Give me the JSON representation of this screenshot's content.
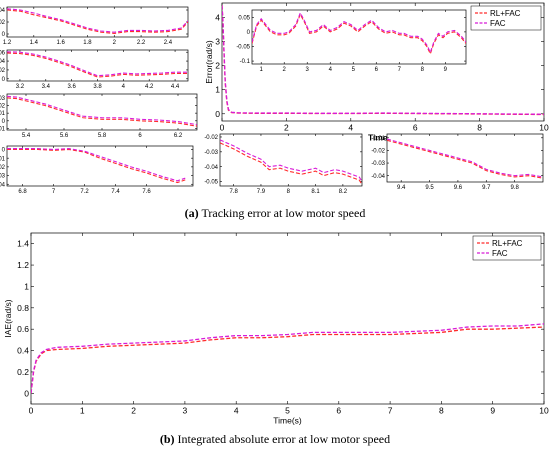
{
  "captions": {
    "a_label": "(a)",
    "a_text": "Tracking error at low motor speed",
    "b_label": "(b)",
    "b_text": "Integrated absolute error at low motor speed"
  },
  "colors": {
    "rl_fac": "#ff2b2b",
    "fac": "#d81bd8"
  },
  "chart_data": [
    {
      "id": "main_a",
      "type": "line",
      "xlabel": "Time(s)",
      "ylabel": "Error(rad/s)",
      "xlim": [
        0,
        10
      ],
      "ylim": [
        -0.3,
        4.6
      ],
      "xticks": [
        0,
        2,
        4,
        6,
        8,
        10
      ],
      "yticks": [
        0,
        1,
        2,
        3,
        4
      ],
      "legend": {
        "placement": "top-right",
        "entries": [
          "RL+FAC",
          "FAC"
        ]
      },
      "series": [
        {
          "name": "RL+FAC",
          "x": [
            0,
            0.03,
            0.06,
            0.1,
            0.15,
            0.2,
            0.3,
            0.5,
            1,
            2,
            3,
            4,
            5,
            6,
            7,
            8,
            9,
            10
          ],
          "y": [
            4.5,
            3.8,
            2.6,
            1.3,
            0.5,
            0.15,
            0.05,
            0.03,
            0.02,
            0.02,
            0.01,
            0.01,
            0.02,
            0.01,
            0.0,
            -0.01,
            -0.02,
            -0.03
          ]
        },
        {
          "name": "FAC",
          "x": [
            0,
            0.03,
            0.06,
            0.1,
            0.15,
            0.2,
            0.3,
            0.5,
            1,
            2,
            3,
            4,
            5,
            6,
            7,
            8,
            9,
            10
          ],
          "y": [
            4.5,
            3.85,
            2.7,
            1.35,
            0.55,
            0.18,
            0.06,
            0.04,
            0.03,
            0.03,
            0.02,
            0.02,
            0.03,
            0.02,
            0.01,
            0.0,
            -0.01,
            -0.02
          ]
        }
      ]
    },
    {
      "id": "inset_main",
      "type": "line",
      "xlim": [
        0.6,
        9.9
      ],
      "ylim": [
        -0.11,
        0.075
      ],
      "xticks": [
        1,
        2,
        3,
        4,
        5,
        6,
        7,
        8,
        9
      ],
      "yticks": [
        0.05,
        0,
        -0.05,
        -0.1
      ],
      "series": [
        {
          "name": "RL+FAC",
          "x": [
            0.6,
            0.8,
            1.0,
            1.2,
            1.4,
            1.7,
            2.0,
            2.2,
            2.5,
            2.7,
            2.9,
            3.1,
            3.4,
            3.7,
            4.0,
            4.3,
            4.6,
            4.9,
            5.2,
            5.5,
            5.8,
            6.1,
            6.4,
            6.7,
            7.0,
            7.2,
            7.5,
            7.8,
            8.0,
            8.2,
            8.35,
            8.5,
            8.7,
            8.9,
            9.1,
            9.4,
            9.7,
            9.9
          ],
          "y": [
            -0.04,
            0.02,
            0.04,
            0.02,
            0.0,
            -0.01,
            -0.01,
            -0.005,
            0.02,
            0.06,
            0.03,
            -0.005,
            0.0,
            0.02,
            0.0,
            0.01,
            0.03,
            0.02,
            0.0,
            0.02,
            0.035,
            0.01,
            -0.005,
            0.0,
            -0.01,
            -0.01,
            -0.02,
            -0.02,
            -0.03,
            -0.05,
            -0.075,
            -0.04,
            -0.01,
            -0.02,
            -0.005,
            0.0,
            -0.02,
            -0.04
          ]
        },
        {
          "name": "FAC",
          "x": [
            0.6,
            0.8,
            1.0,
            1.2,
            1.4,
            1.7,
            2.0,
            2.2,
            2.5,
            2.7,
            2.9,
            3.1,
            3.4,
            3.7,
            4.0,
            4.3,
            4.6,
            4.9,
            5.2,
            5.5,
            5.8,
            6.1,
            6.4,
            6.7,
            7.0,
            7.2,
            7.5,
            7.8,
            8.0,
            8.2,
            8.35,
            8.5,
            8.7,
            8.9,
            9.1,
            9.4,
            9.7,
            9.9
          ],
          "y": [
            -0.035,
            0.025,
            0.045,
            0.025,
            0.005,
            -0.005,
            -0.005,
            0.0,
            0.025,
            0.065,
            0.035,
            0.0,
            0.005,
            0.025,
            0.005,
            0.015,
            0.035,
            0.025,
            0.005,
            0.025,
            0.04,
            0.015,
            0.0,
            0.005,
            -0.005,
            -0.005,
            -0.015,
            -0.015,
            -0.025,
            -0.045,
            -0.07,
            -0.035,
            -0.005,
            -0.015,
            0.0,
            0.005,
            -0.015,
            -0.035
          ]
        }
      ]
    },
    {
      "id": "left_1",
      "type": "line",
      "xlim": [
        1.2,
        2.55
      ],
      "ylim": [
        -0.005,
        0.045
      ],
      "xticks": [
        1.2,
        1.4,
        1.6,
        1.8,
        2,
        2.2,
        2.4
      ],
      "yticks": [
        0.04,
        0.02,
        0
      ],
      "series": [
        {
          "name": "RL+FAC",
          "x": [
            1.2,
            1.3,
            1.4,
            1.5,
            1.6,
            1.7,
            1.8,
            1.9,
            2.0,
            2.1,
            2.2,
            2.3,
            2.4,
            2.5,
            2.55
          ],
          "y": [
            0.04,
            0.038,
            0.032,
            0.027,
            0.022,
            0.015,
            0.008,
            0.003,
            0.001,
            0.004,
            0.004,
            0.003,
            0.004,
            0.008,
            0.02
          ]
        },
        {
          "name": "FAC",
          "x": [
            1.2,
            1.3,
            1.4,
            1.5,
            1.6,
            1.7,
            1.8,
            1.9,
            2.0,
            2.1,
            2.2,
            2.3,
            2.4,
            2.5,
            2.55
          ],
          "y": [
            0.042,
            0.04,
            0.035,
            0.029,
            0.024,
            0.017,
            0.01,
            0.005,
            0.003,
            0.006,
            0.006,
            0.005,
            0.006,
            0.01,
            0.022
          ]
        }
      ]
    },
    {
      "id": "left_2",
      "type": "line",
      "xlim": [
        3.1,
        4.5
      ],
      "ylim": [
        -0.005,
        0.065
      ],
      "xticks": [
        3.2,
        3.4,
        3.6,
        3.8,
        4,
        4.2,
        4.4
      ],
      "yticks": [
        0.06,
        0.04,
        0.02,
        0
      ],
      "series": [
        {
          "name": "RL+FAC",
          "x": [
            3.1,
            3.2,
            3.3,
            3.4,
            3.5,
            3.6,
            3.7,
            3.8,
            3.9,
            4.0,
            4.1,
            4.2,
            4.3,
            4.4,
            4.5
          ],
          "y": [
            0.058,
            0.057,
            0.053,
            0.046,
            0.037,
            0.027,
            0.015,
            0.004,
            0.006,
            0.01,
            0.008,
            0.009,
            0.01,
            0.012,
            0.012
          ]
        },
        {
          "name": "FAC",
          "x": [
            3.1,
            3.2,
            3.3,
            3.4,
            3.5,
            3.6,
            3.7,
            3.8,
            3.9,
            4.0,
            4.1,
            4.2,
            4.3,
            4.4,
            4.5
          ],
          "y": [
            0.061,
            0.06,
            0.056,
            0.049,
            0.04,
            0.03,
            0.018,
            0.007,
            0.009,
            0.013,
            0.011,
            0.012,
            0.013,
            0.015,
            0.015
          ]
        }
      ]
    },
    {
      "id": "left_3",
      "type": "line",
      "xlim": [
        5.3,
        6.3
      ],
      "ylim": [
        -0.012,
        0.035
      ],
      "xticks": [
        5.4,
        5.6,
        5.8,
        6,
        6.2
      ],
      "yticks": [
        0.03,
        0.02,
        0.01,
        0,
        -0.01
      ],
      "series": [
        {
          "name": "RL+FAC",
          "x": [
            5.3,
            5.35,
            5.4,
            5.5,
            5.6,
            5.7,
            5.8,
            5.9,
            6.0,
            6.1,
            6.2,
            6.3
          ],
          "y": [
            0.03,
            0.029,
            0.026,
            0.02,
            0.012,
            0.004,
            0.002,
            0.002,
            0.0,
            -0.001,
            -0.003,
            -0.007
          ]
        },
        {
          "name": "FAC",
          "x": [
            5.3,
            5.35,
            5.4,
            5.5,
            5.6,
            5.7,
            5.8,
            5.9,
            6.0,
            6.1,
            6.2,
            6.3
          ],
          "y": [
            0.032,
            0.031,
            0.028,
            0.022,
            0.014,
            0.006,
            0.004,
            0.004,
            0.002,
            0.001,
            -0.001,
            -0.005
          ]
        }
      ]
    },
    {
      "id": "left_4",
      "type": "line",
      "xlim": [
        6.7,
        7.9
      ],
      "ylim": [
        -0.042,
        0.004
      ],
      "xticks": [
        6.8,
        7,
        7.2,
        7.4,
        7.6
      ],
      "yticks": [
        0,
        -0.01,
        -0.02,
        -0.03,
        -0.04
      ],
      "series": [
        {
          "name": "RL+FAC",
          "x": [
            6.7,
            6.8,
            6.9,
            7.0,
            7.1,
            7.2,
            7.3,
            7.4,
            7.5,
            7.6,
            7.7,
            7.8,
            7.85
          ],
          "y": [
            0.0,
            0.0,
            0.0,
            -0.001,
            0.0,
            -0.003,
            -0.01,
            -0.016,
            -0.022,
            -0.027,
            -0.033,
            -0.038,
            -0.035
          ]
        },
        {
          "name": "FAC",
          "x": [
            6.7,
            6.8,
            6.9,
            7.0,
            7.1,
            7.2,
            7.3,
            7.4,
            7.5,
            7.6,
            7.7,
            7.8,
            7.85
          ],
          "y": [
            0.001,
            0.001,
            0.001,
            0.0,
            0.001,
            -0.002,
            -0.008,
            -0.014,
            -0.02,
            -0.025,
            -0.031,
            -0.036,
            -0.033
          ]
        }
      ]
    },
    {
      "id": "bottom_1",
      "type": "line",
      "xlim": [
        7.75,
        8.27
      ],
      "ylim": [
        -0.053,
        -0.018
      ],
      "xticks": [
        7.8,
        7.9,
        8,
        8.1,
        8.2
      ],
      "yticks": [
        -0.02,
        -0.03,
        -0.04,
        -0.05
      ],
      "series": [
        {
          "name": "RL+FAC",
          "x": [
            7.75,
            7.8,
            7.85,
            7.9,
            7.93,
            7.97,
            8.0,
            8.05,
            8.1,
            8.13,
            8.17,
            8.2,
            8.23,
            8.26,
            8.27
          ],
          "y": [
            -0.024,
            -0.028,
            -0.033,
            -0.037,
            -0.042,
            -0.041,
            -0.043,
            -0.045,
            -0.043,
            -0.046,
            -0.044,
            -0.045,
            -0.047,
            -0.049,
            -0.052
          ]
        },
        {
          "name": "FAC",
          "x": [
            7.75,
            7.8,
            7.85,
            7.9,
            7.93,
            7.97,
            8.0,
            8.05,
            8.1,
            8.13,
            8.17,
            8.2,
            8.23,
            8.26,
            8.27
          ],
          "y": [
            -0.022,
            -0.026,
            -0.031,
            -0.035,
            -0.04,
            -0.039,
            -0.041,
            -0.043,
            -0.041,
            -0.044,
            -0.042,
            -0.043,
            -0.045,
            -0.047,
            -0.05
          ]
        }
      ]
    },
    {
      "id": "bottom_2",
      "type": "line",
      "xlim": [
        9.35,
        9.9
      ],
      "ylim": [
        -0.045,
        -0.007
      ],
      "xticks": [
        9.4,
        9.5,
        9.6,
        9.7,
        9.8
      ],
      "yticks": [
        -0.01,
        -0.02,
        -0.03,
        -0.04
      ],
      "series": [
        {
          "name": "RL+FAC",
          "x": [
            9.35,
            9.4,
            9.45,
            9.5,
            9.55,
            9.6,
            9.65,
            9.7,
            9.75,
            9.8,
            9.85,
            9.9
          ],
          "y": [
            -0.012,
            -0.015,
            -0.018,
            -0.021,
            -0.024,
            -0.027,
            -0.03,
            -0.036,
            -0.039,
            -0.041,
            -0.04,
            -0.042
          ]
        },
        {
          "name": "FAC",
          "x": [
            9.35,
            9.4,
            9.45,
            9.5,
            9.55,
            9.6,
            9.65,
            9.7,
            9.75,
            9.8,
            9.85,
            9.9
          ],
          "y": [
            -0.011,
            -0.014,
            -0.017,
            -0.02,
            -0.023,
            -0.026,
            -0.029,
            -0.035,
            -0.038,
            -0.04,
            -0.039,
            -0.041
          ]
        }
      ]
    },
    {
      "id": "iae_b",
      "type": "line",
      "xlabel": "Time(s)",
      "ylabel": "IAE(rad/s)",
      "xlim": [
        0,
        10
      ],
      "ylim": [
        -0.1,
        1.5
      ],
      "xticks": [
        0,
        1,
        2,
        3,
        4,
        5,
        6,
        7,
        8,
        9,
        10
      ],
      "yticks": [
        0,
        0.2,
        0.4,
        0.6,
        0.8,
        1,
        1.2,
        1.4
      ],
      "legend": {
        "placement": "top-right",
        "entries": [
          "RL+FAC",
          "FAC"
        ]
      },
      "series": [
        {
          "name": "RL+FAC",
          "x": [
            0,
            0.05,
            0.1,
            0.2,
            0.3,
            0.5,
            1,
            1.5,
            2,
            2.5,
            3,
            3.5,
            4,
            4.5,
            5,
            5.5,
            6,
            6.5,
            7,
            7.5,
            8,
            8.5,
            9,
            9.5,
            10
          ],
          "y": [
            0,
            0.2,
            0.3,
            0.37,
            0.4,
            0.41,
            0.42,
            0.44,
            0.45,
            0.46,
            0.47,
            0.5,
            0.52,
            0.52,
            0.53,
            0.55,
            0.55,
            0.55,
            0.55,
            0.56,
            0.57,
            0.6,
            0.6,
            0.61,
            0.62
          ]
        },
        {
          "name": "FAC",
          "x": [
            0,
            0.05,
            0.1,
            0.2,
            0.3,
            0.5,
            1,
            1.5,
            2,
            2.5,
            3,
            3.5,
            4,
            4.5,
            5,
            5.5,
            6,
            6.5,
            7,
            7.5,
            8,
            8.5,
            9,
            9.5,
            10
          ],
          "y": [
            0,
            0.21,
            0.31,
            0.38,
            0.41,
            0.43,
            0.44,
            0.46,
            0.47,
            0.48,
            0.49,
            0.52,
            0.54,
            0.54,
            0.55,
            0.57,
            0.57,
            0.57,
            0.57,
            0.58,
            0.59,
            0.62,
            0.63,
            0.63,
            0.65
          ]
        }
      ]
    }
  ]
}
